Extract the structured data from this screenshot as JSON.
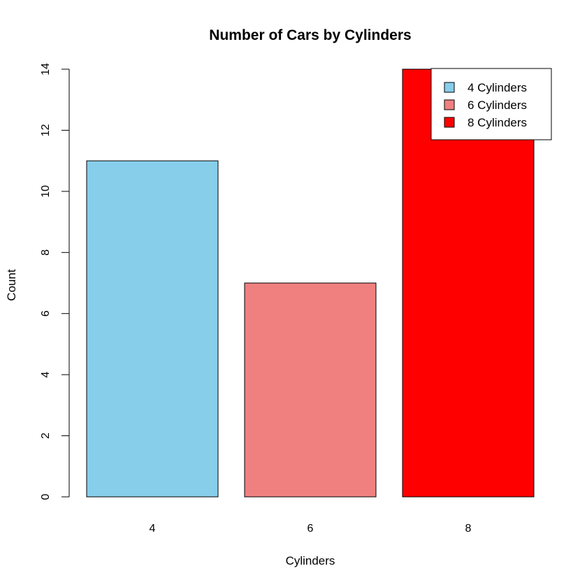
{
  "chart_data": {
    "type": "bar",
    "title": "Number of Cars by Cylinders",
    "xlabel": "Cylinders",
    "ylabel": "Count",
    "categories": [
      "4",
      "6",
      "8"
    ],
    "values": [
      11,
      7,
      14
    ],
    "colors": [
      "#87ceeb",
      "#f08080",
      "#ff0000"
    ],
    "ylim": [
      0,
      14
    ],
    "yticks": [
      0,
      2,
      4,
      6,
      8,
      10,
      12,
      14
    ],
    "grid": false,
    "legend": {
      "position": "top-right",
      "entries": [
        {
          "label": "4 Cylinders",
          "color": "#87ceeb"
        },
        {
          "label": "6 Cylinders",
          "color": "#f08080"
        },
        {
          "label": "8 Cylinders",
          "color": "#ff0000"
        }
      ]
    }
  }
}
